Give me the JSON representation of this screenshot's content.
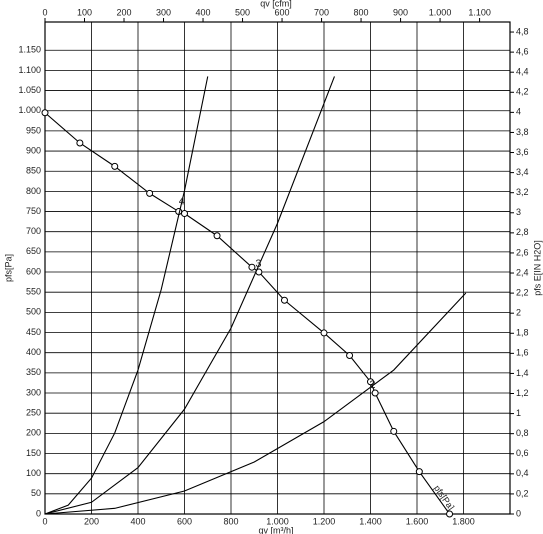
{
  "chart_data": {
    "type": "line",
    "x_label_top": "qv [cfm]",
    "x_label": "qv [m³/h]",
    "y_label": "pfs[Pa]",
    "y2_label": "pfs  E[IN H2O]",
    "xlim": [
      0,
      2000
    ],
    "xticks": [
      0,
      200,
      400,
      600,
      800,
      {
        "value": 1000,
        "label": "1.000"
      },
      {
        "value": 1200,
        "label": "1.200"
      },
      {
        "value": 1400,
        "label": "1.400"
      },
      {
        "value": 1600,
        "label": "1.600"
      },
      {
        "value": 1800,
        "label": "1.800"
      }
    ],
    "x2lim": [
      0,
      1177
    ],
    "x2ticks": [
      0,
      100,
      200,
      300,
      400,
      500,
      600,
      700,
      800,
      900,
      {
        "value": 1000,
        "label": "1.000"
      },
      {
        "value": 1100,
        "label": "1.100"
      }
    ],
    "ylim": [
      0,
      1220
    ],
    "yticks": [
      0,
      50,
      100,
      150,
      200,
      250,
      300,
      350,
      400,
      450,
      500,
      550,
      600,
      650,
      700,
      750,
      800,
      850,
      900,
      950,
      {
        "value": 1000,
        "label": "1.000"
      },
      {
        "value": 1050,
        "label": "1.050"
      },
      {
        "value": 1100,
        "label": "1.100"
      },
      {
        "value": 1150,
        "label": "1.150"
      }
    ],
    "y2lim": [
      0,
      4.9
    ],
    "y2ticks": [
      0,
      {
        "value": 0.2,
        "label": "0,2"
      },
      {
        "value": 0.4,
        "label": "0,4"
      },
      {
        "value": 0.6,
        "label": "0,6"
      },
      {
        "value": 0.8,
        "label": "0,8"
      },
      1,
      {
        "value": 1.2,
        "label": "1,2"
      },
      {
        "value": 1.4,
        "label": "1,4"
      },
      {
        "value": 1.6,
        "label": "1,6"
      },
      {
        "value": 1.8,
        "label": "1,8"
      },
      2,
      {
        "value": 2.2,
        "label": "2,2"
      },
      {
        "value": 2.4,
        "label": "2,4"
      },
      {
        "value": 2.6,
        "label": "2,6"
      },
      {
        "value": 2.8,
        "label": "2,8"
      },
      3,
      {
        "value": 3.2,
        "label": "3,2"
      },
      {
        "value": 3.4,
        "label": "3,4"
      },
      {
        "value": 3.6,
        "label": "3,6"
      },
      {
        "value": 3.8,
        "label": "3,8"
      },
      4,
      {
        "value": 4.2,
        "label": "4,2"
      },
      {
        "value": 4.4,
        "label": "4,4"
      },
      {
        "value": 4.6,
        "label": "4,6"
      },
      {
        "value": 4.8,
        "label": "4,8"
      }
    ],
    "grid": true,
    "series": [
      {
        "name": "pfs[Pa]",
        "color": "#000000",
        "markers": true,
        "x": [
          0,
          150,
          300,
          450,
          575,
          600,
          740,
          890,
          920,
          1030,
          1200,
          1310,
          1400,
          1420,
          1500,
          1610,
          1740
        ],
        "values": [
          995,
          920,
          862,
          795,
          750,
          745,
          690,
          612,
          600,
          530,
          449,
          393,
          328,
          300,
          205,
          105,
          0
        ]
      },
      {
        "color": "#000000",
        "markers": false,
        "x": [
          0,
          100,
          200,
          300,
          400,
          500,
          600,
          700
        ],
        "values": [
          0,
          22,
          89,
          201,
          357,
          557,
          802,
          1085
        ]
      },
      {
        "color": "#000000",
        "markers": false,
        "x": [
          0,
          200,
          400,
          600,
          800,
          1000,
          1245
        ],
        "values": [
          0,
          29,
          115,
          260,
          461,
          721,
          1085
        ]
      },
      {
        "color": "#000000",
        "markers": false,
        "x": [
          0,
          300,
          600,
          900,
          1200,
          1500,
          1810
        ],
        "values": [
          0,
          14,
          57,
          129,
          229,
          357,
          548
        ]
      }
    ],
    "annotations": [
      {
        "text": "4",
        "x": 575,
        "y": 775
      },
      {
        "text": "3",
        "x": 905,
        "y": 620
      },
      {
        "text": "2",
        "x": 1395,
        "y": 320
      }
    ]
  }
}
